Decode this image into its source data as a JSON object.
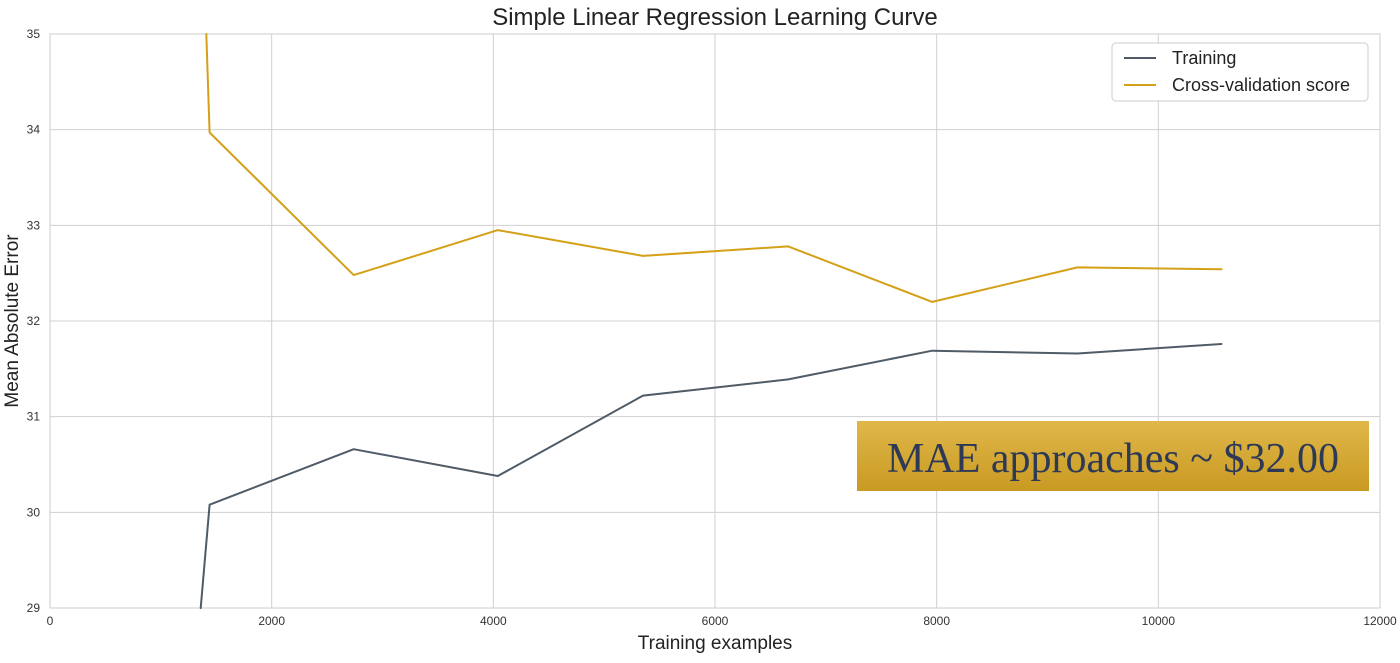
{
  "chart_data": {
    "type": "line",
    "title": "Simple Linear Regression Learning Curve",
    "xlabel": "Training examples",
    "ylabel": "Mean Absolute Error",
    "xlim": [
      0,
      12000
    ],
    "ylim": [
      29,
      35
    ],
    "xticks": [
      0,
      2000,
      4000,
      6000,
      8000,
      10000,
      12000
    ],
    "yticks": [
      29,
      30,
      31,
      32,
      33,
      34,
      35
    ],
    "grid": true,
    "legend_position": "top-right",
    "series": [
      {
        "name": "Training",
        "color": "#4f5b66",
        "x": [
          1360,
          1440,
          2740,
          4040,
          5350,
          6660,
          7960,
          9270,
          10570
        ],
        "y": [
          29.0,
          30.08,
          30.66,
          30.38,
          31.22,
          31.39,
          31.69,
          31.66,
          31.76
        ]
      },
      {
        "name": "Cross-validation score",
        "color": "#d4a017",
        "x": [
          1410,
          1440,
          2740,
          4040,
          5350,
          6660,
          7960,
          9270,
          10570
        ],
        "y": [
          35.0,
          33.97,
          32.48,
          32.95,
          32.68,
          32.78,
          32.2,
          32.56,
          32.54
        ]
      }
    ],
    "annotation": {
      "text": "MAE approaches ~ $32.00",
      "background": "#d4a937",
      "text_color": "#2e3a55"
    }
  }
}
